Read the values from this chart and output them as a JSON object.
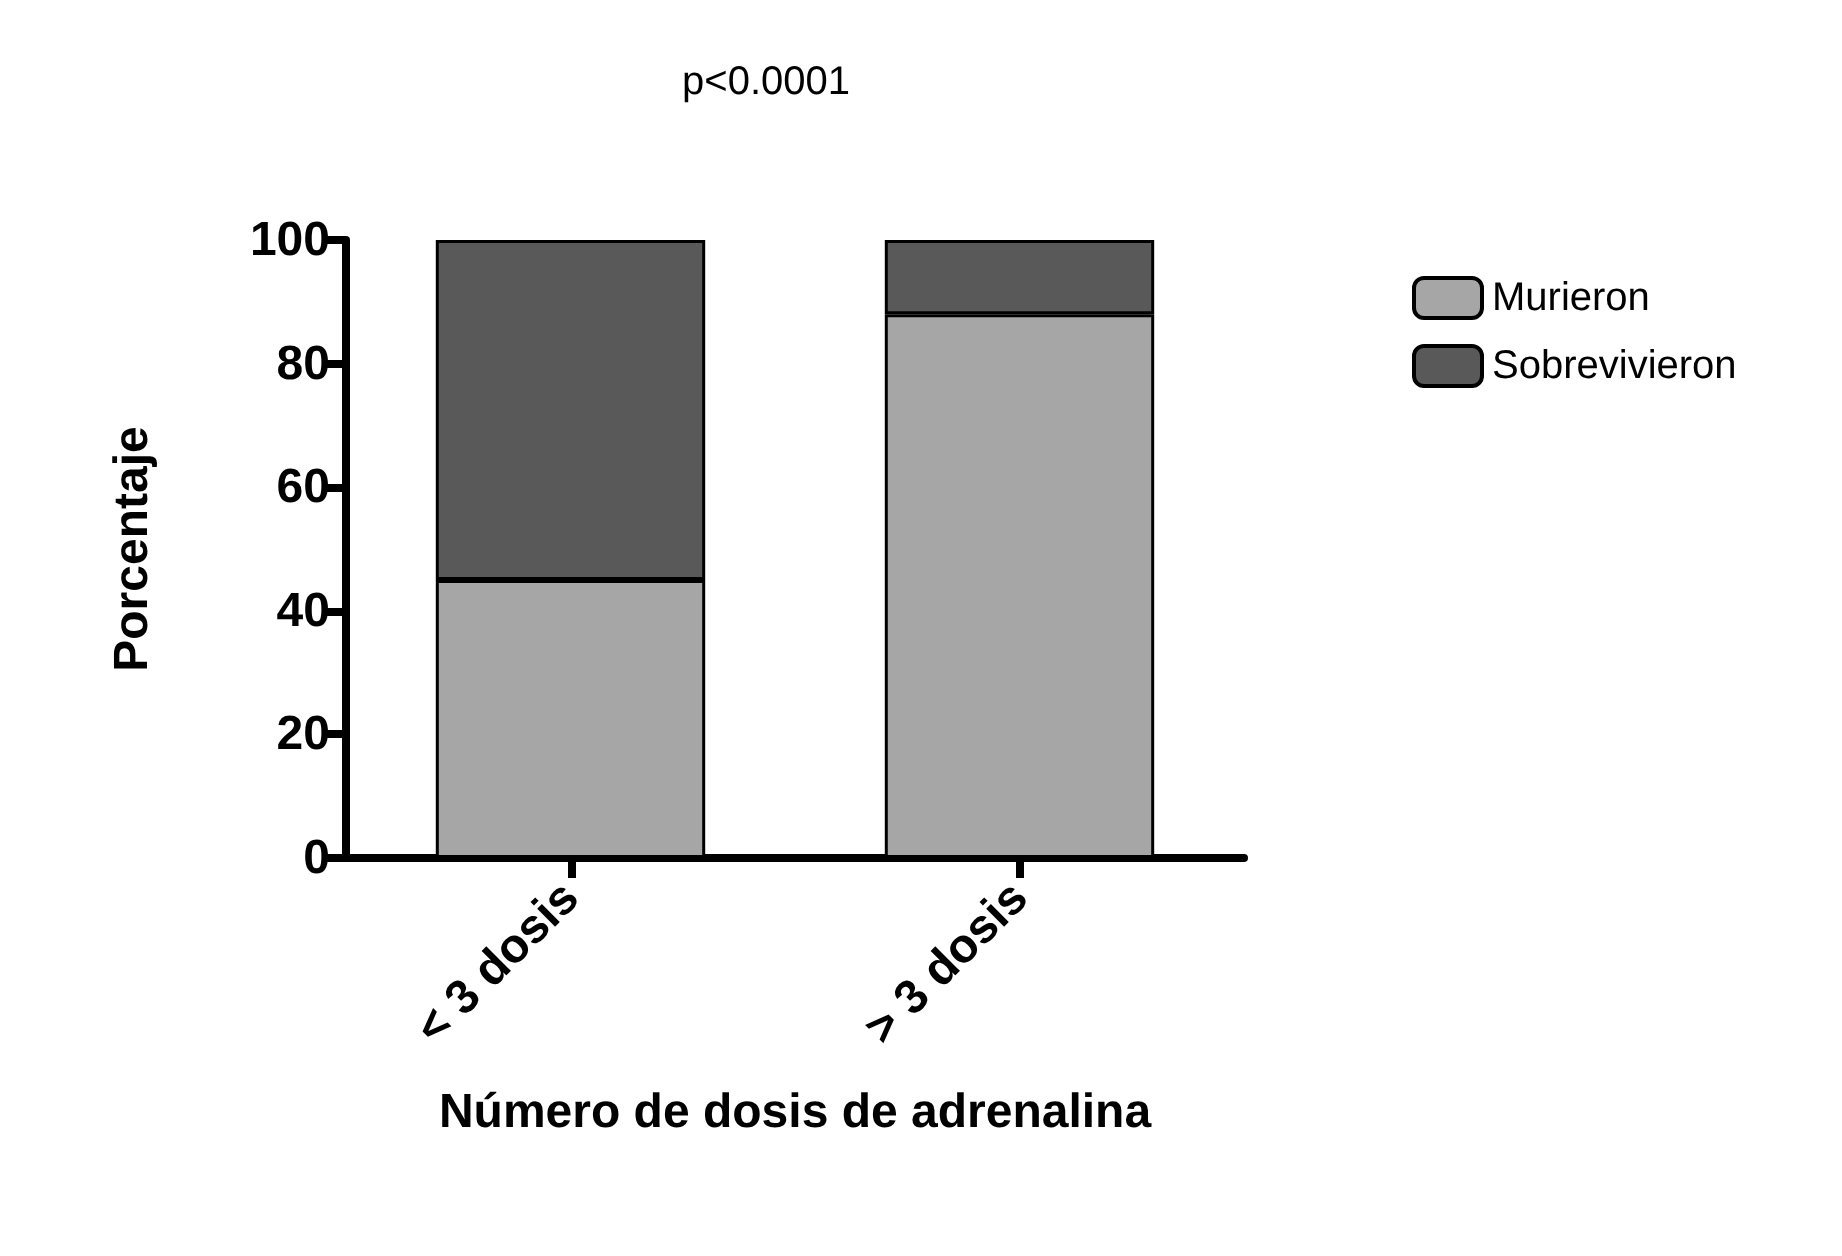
{
  "chart_data": {
    "type": "bar",
    "title": "p<0.0001",
    "xlabel": "Número de dosis de adrenalina",
    "ylabel": "Porcentaje",
    "categories": [
      "< 3 dosis",
      "> 3 dosis"
    ],
    "stacked": true,
    "series": [
      {
        "name": "Murieron",
        "color": "#a6a6a6",
        "values": [
          45,
          88
        ]
      },
      {
        "name": "Sobrevivieron",
        "color": "#595959",
        "values": [
          55,
          12
        ]
      }
    ],
    "ylim": [
      0,
      100
    ],
    "yticks": [
      0,
      20,
      40,
      60,
      80,
      100
    ],
    "grid": false,
    "legend": "top right"
  }
}
